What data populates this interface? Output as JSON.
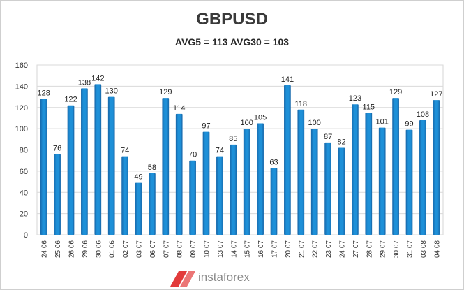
{
  "chart_data": {
    "type": "bar",
    "title": "GBPUSD",
    "subtitle": "AVG5 = 113 AVG30 = 103",
    "categories": [
      "24.06",
      "25.06",
      "26.06",
      "29.06",
      "30.06",
      "01.06",
      "02.07",
      "03.07",
      "06.07",
      "07.07",
      "08.07",
      "09.07",
      "10.07",
      "13.07",
      "14.07",
      "15.07",
      "16.07",
      "17.07",
      "20.07",
      "21.07",
      "22.07",
      "23.07",
      "24.07",
      "27.07",
      "28.07",
      "29.07",
      "30.07",
      "31.07",
      "03.08",
      "04.08"
    ],
    "values": [
      128,
      76,
      122,
      138,
      142,
      130,
      74,
      49,
      58,
      129,
      114,
      70,
      97,
      74,
      85,
      100,
      105,
      63,
      141,
      118,
      100,
      87,
      82,
      123,
      115,
      101,
      129,
      99,
      108,
      127
    ],
    "ylim": [
      0,
      160
    ],
    "yticks": [
      0,
      20,
      40,
      60,
      80,
      100,
      120,
      140,
      160
    ],
    "grid": true,
    "bar_color": "#1e90d8",
    "bar_shade": "#1766a8"
  },
  "watermark": {
    "text": "instaforex",
    "color": "#e23b3b"
  }
}
